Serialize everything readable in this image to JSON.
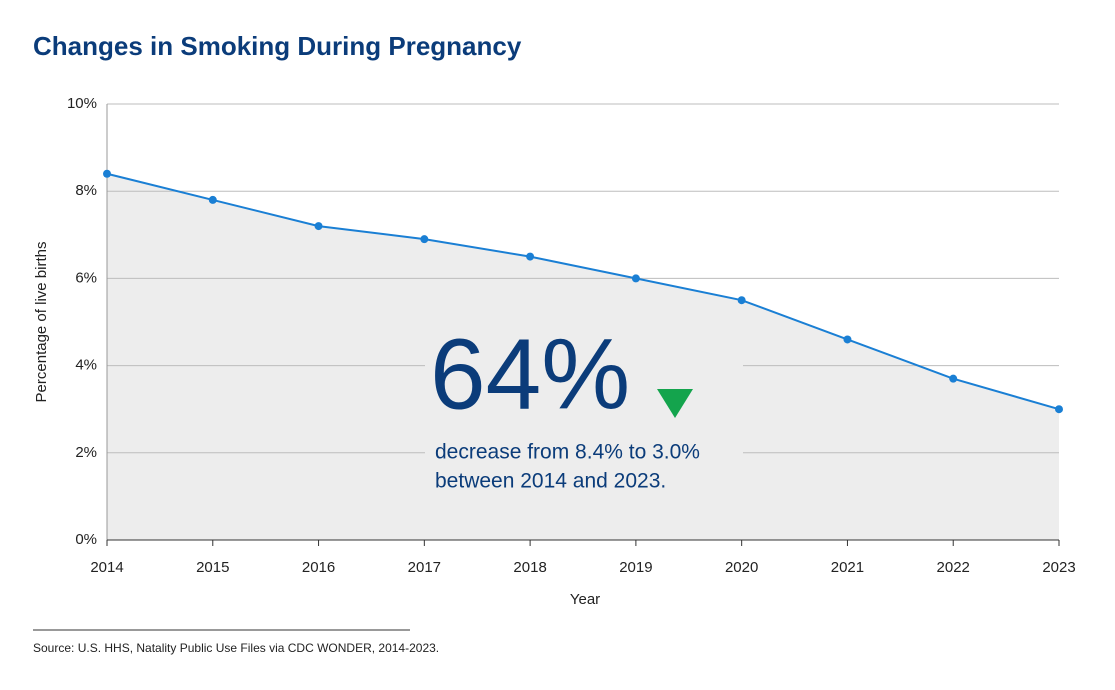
{
  "chart_data": {
    "type": "area",
    "title": "Changes in Smoking During Pregnancy",
    "x": [
      2014,
      2015,
      2016,
      2017,
      2018,
      2019,
      2020,
      2021,
      2022,
      2023
    ],
    "series": [
      {
        "name": "Percentage of live births",
        "color": "#1a7fd4",
        "values": [
          8.4,
          7.8,
          7.2,
          6.9,
          6.5,
          6.0,
          5.5,
          4.6,
          3.7,
          3.0
        ]
      }
    ],
    "xlim": [
      2014,
      2023
    ],
    "xticks": [
      2014,
      2015,
      2016,
      2017,
      2018,
      2019,
      2020,
      2021,
      2022,
      2023
    ],
    "ylim": [
      0,
      10
    ],
    "yticks": [
      {
        "value": 0,
        "label": "0%"
      },
      {
        "value": 2,
        "label": "2%"
      },
      {
        "value": 4,
        "label": "4%"
      },
      {
        "value": 6,
        "label": "6%"
      },
      {
        "value": 8,
        "label": "8%"
      },
      {
        "value": 10,
        "label": "10%"
      }
    ],
    "xlabel": "Year",
    "ylabel": "Percentage of live births",
    "grid": true,
    "area_color": "#ededed",
    "annotation": {
      "headline": "64%",
      "lines": [
        "decrease from 8.4% to 3.0%",
        "between 2014 and 2023."
      ]
    },
    "source": "Source: U.S. HHS, Natality Public Use Files via CDC WONDER, 2014-2023."
  }
}
